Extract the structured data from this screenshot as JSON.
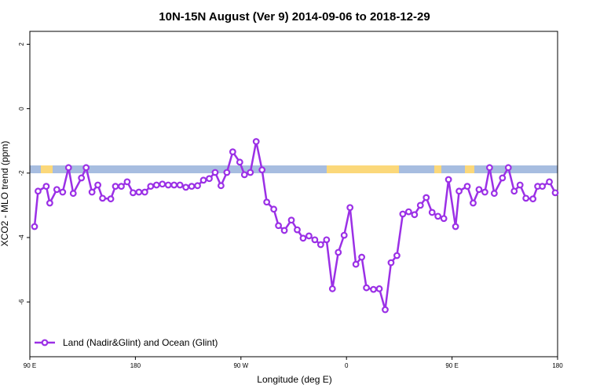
{
  "chart_data": {
    "type": "line",
    "title": "10N-15N August (Ver 9)   2014-09-06 to 2018-12-29",
    "x_label": "Longitude (deg E)",
    "y_label": "XCO2 - MLO trend (ppm)",
    "xlim": [
      90,
      540
    ],
    "ylim": [
      -7.7,
      2.4
    ],
    "xticks": [
      {
        "value": 90,
        "label": "90 E"
      },
      180,
      {
        "value": 270,
        "label": "90 W"
      },
      {
        "value": 360,
        "label": "0"
      },
      {
        "value": 450,
        "label": "90 E"
      },
      {
        "value": 540,
        "label": "180"
      }
    ],
    "yticks": [
      2,
      0,
      -2,
      -4,
      -6
    ],
    "legend": "bottom-left",
    "series": [
      {
        "name": "Land (Nadir&Glint) and Ocean (Glint)",
        "color": "#9b30e6",
        "x": [
          94,
          97,
          104,
          107,
          113,
          118,
          123,
          127,
          134,
          138,
          143,
          148,
          152,
          159,
          163,
          168,
          173,
          178,
          183,
          188,
          193,
          198,
          203,
          208,
          213,
          218,
          223,
          228,
          233,
          238,
          243,
          248,
          253,
          258,
          263,
          269,
          273,
          278,
          283,
          288,
          292,
          298,
          302,
          307,
          313,
          318,
          323,
          328,
          333,
          338,
          343,
          348,
          353,
          358,
          363,
          368,
          373,
          377,
          383,
          388,
          393,
          398,
          403,
          408,
          413,
          418,
          423,
          428,
          433,
          438,
          443,
          447,
          453,
          456,
          463,
          468,
          473,
          478,
          482,
          486,
          493,
          498,
          503,
          508,
          513,
          519,
          523,
          527,
          533,
          538
        ],
        "values": [
          -3.66,
          -2.56,
          -2.41,
          -2.93,
          -2.51,
          -2.59,
          -1.83,
          -2.63,
          -2.15,
          -1.83,
          -2.59,
          -2.37,
          -2.78,
          -2.8,
          -2.41,
          -2.41,
          -2.27,
          -2.61,
          -2.59,
          -2.59,
          -2.41,
          -2.37,
          -2.34,
          -2.37,
          -2.37,
          -2.37,
          -2.44,
          -2.41,
          -2.39,
          -2.22,
          -2.17,
          -1.98,
          -2.39,
          -1.98,
          -1.34,
          -1.66,
          -2.05,
          -1.98,
          -1.02,
          -1.9,
          -2.9,
          -3.12,
          -3.63,
          -3.78,
          -3.46,
          -3.76,
          -4.02,
          -3.95,
          -4.07,
          -4.22,
          -4.07,
          -5.59,
          -4.46,
          -3.93,
          -3.07,
          -4.83,
          -4.61,
          -5.56,
          -5.61,
          -5.59,
          -6.24,
          -4.78,
          -4.56,
          -3.27,
          -3.2,
          -3.29,
          -3,
          -2.76,
          -3.22,
          -3.34,
          -3.41,
          -2.2,
          -3.66,
          -2.56,
          -2.41,
          -2.93,
          -2.51,
          -2.59,
          -1.83,
          -2.63,
          -2.15,
          -1.83,
          -2.56,
          -2.37,
          -2.78,
          -2.8,
          -2.41,
          -2.41,
          -2.27,
          -2.61
        ]
      }
    ]
  }
}
